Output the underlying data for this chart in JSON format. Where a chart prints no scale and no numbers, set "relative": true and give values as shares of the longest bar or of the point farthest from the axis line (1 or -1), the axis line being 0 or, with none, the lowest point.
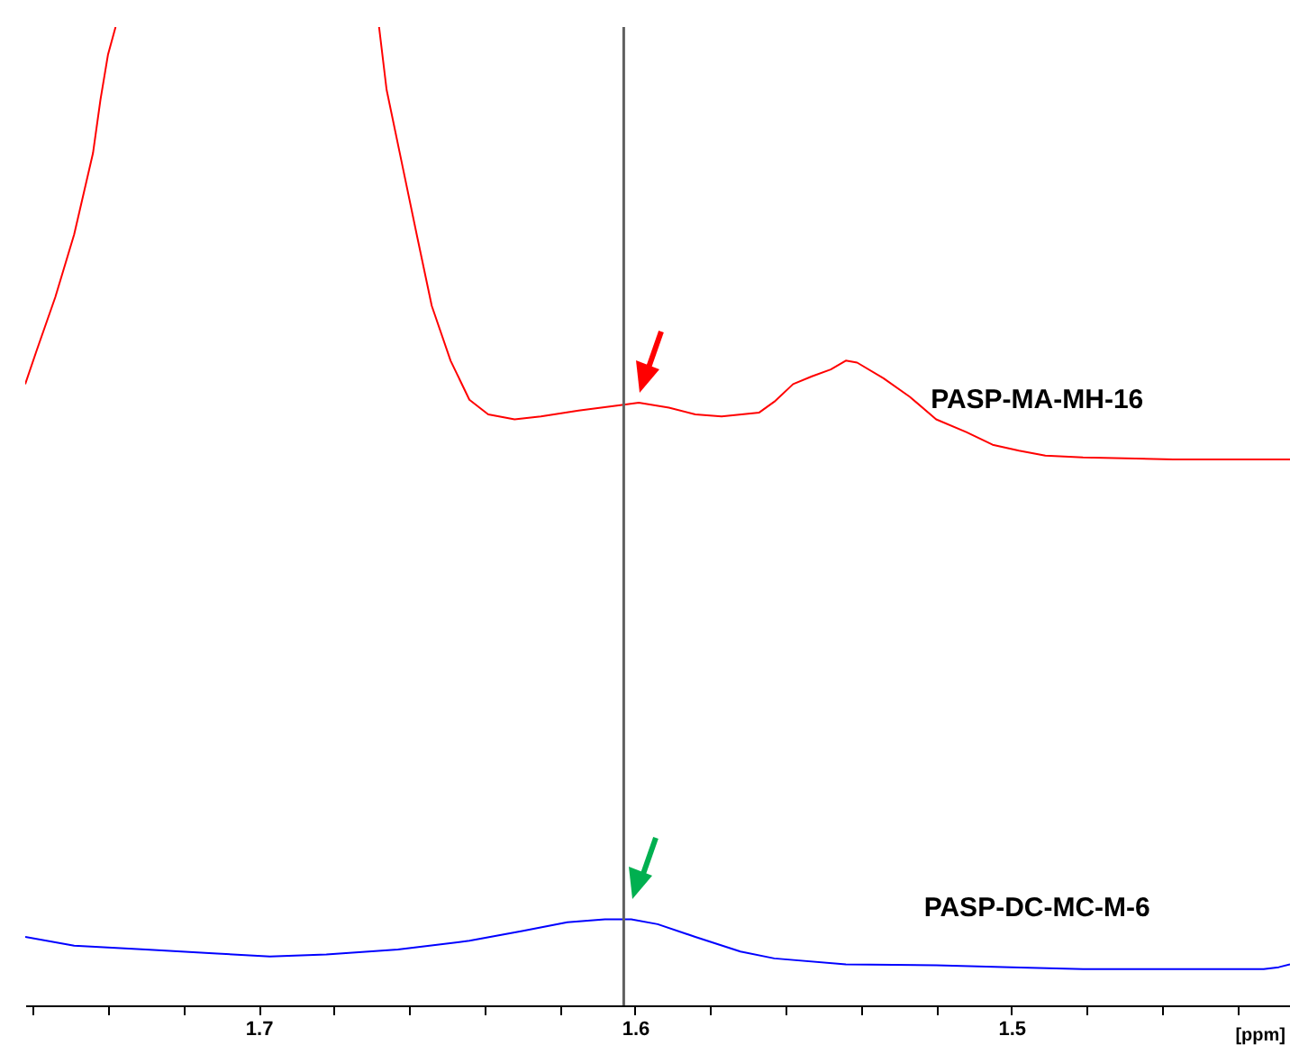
{
  "chart_data": {
    "type": "line",
    "relative": true,
    "xlabel": "[ppm]",
    "xlim": [
      1.762,
      1.426
    ],
    "xticks": [
      {
        "value": 1.76,
        "label": null
      },
      {
        "value": 1.74,
        "label": null
      },
      {
        "value": 1.72,
        "label": null
      },
      1.7,
      {
        "value": 1.68,
        "label": null
      },
      {
        "value": 1.66,
        "label": null
      },
      {
        "value": 1.64,
        "label": null
      },
      {
        "value": 1.62,
        "label": null
      },
      1.6,
      {
        "value": 1.58,
        "label": null
      },
      {
        "value": 1.56,
        "label": null
      },
      {
        "value": 1.54,
        "label": null
      },
      {
        "value": 1.52,
        "label": null
      },
      1.5,
      {
        "value": 1.48,
        "label": null
      },
      {
        "value": 1.46,
        "label": null
      },
      {
        "value": 1.44,
        "label": null
      }
    ],
    "grid": false,
    "ref_lines": [
      {
        "axis": "x",
        "value": 1.603,
        "color": "#606060"
      }
    ],
    "series": [
      {
        "name": "PASP-MA-MH-16",
        "color": "#ff0000",
        "x": [
          1.762,
          1.759,
          1.754,
          1.749,
          1.744,
          1.742,
          1.74,
          1.738,
          1.703,
          1.668,
          1.666,
          1.662,
          1.658,
          1.654,
          1.649,
          1.644,
          1.639,
          1.632,
          1.625,
          1.615,
          1.603,
          1.599,
          1.591,
          1.584,
          1.577,
          1.567,
          1.563,
          1.558,
          1.553,
          1.548,
          1.544,
          1.541,
          1.534,
          1.527,
          1.52,
          1.512,
          1.505,
          1.498,
          1.491,
          1.481,
          1.457,
          1.426
        ],
        "values": [
          0.635,
          0.669,
          0.724,
          0.788,
          0.871,
          0.926,
          0.972,
          1.0,
          null,
          1.0,
          0.936,
          0.862,
          0.788,
          0.715,
          0.659,
          0.619,
          0.604,
          0.599,
          0.602,
          0.608,
          0.614,
          0.616,
          0.611,
          0.604,
          0.602,
          0.606,
          0.617,
          0.635,
          0.643,
          0.65,
          0.659,
          0.657,
          0.641,
          0.622,
          0.599,
          0.586,
          0.573,
          0.567,
          0.562,
          0.56,
          0.558,
          0.558
        ]
      },
      {
        "name": "PASP-DC-MC-M-6",
        "color": "#0000ff",
        "x": [
          1.762,
          1.749,
          1.73,
          1.711,
          1.697,
          1.682,
          1.663,
          1.644,
          1.63,
          1.618,
          1.608,
          1.601,
          1.594,
          1.584,
          1.572,
          1.563,
          1.544,
          1.52,
          1.5,
          1.481,
          1.457,
          1.433,
          1.429,
          1.426
        ],
        "values": [
          0.07,
          0.061,
          0.057,
          0.053,
          0.05,
          0.052,
          0.057,
          0.066,
          0.076,
          0.085,
          0.088,
          0.088,
          0.083,
          0.07,
          0.055,
          0.048,
          0.042,
          0.041,
          0.039,
          0.037,
          0.037,
          0.037,
          0.039,
          0.042
        ]
      }
    ]
  }
}
